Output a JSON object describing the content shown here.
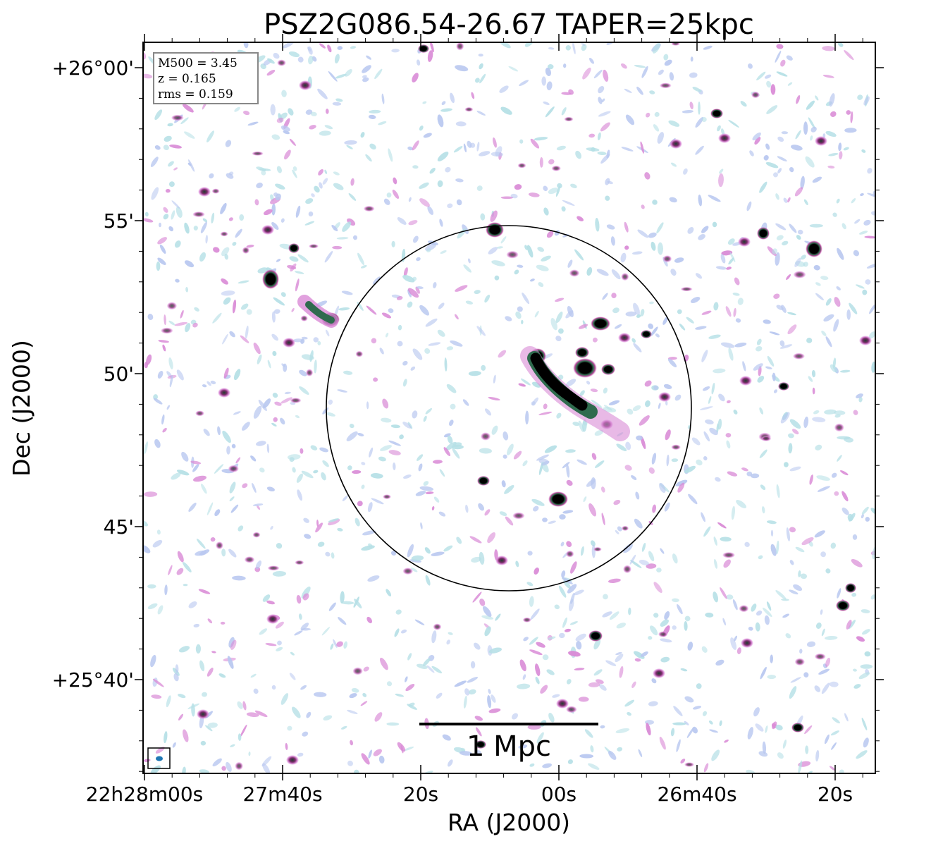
{
  "chart_data": {
    "type": "heatmap",
    "title": "PSZ2G086.54-26.67 TAPER=25kpc",
    "xlabel": "RA (J2000)",
    "ylabel": "Dec (J2000)",
    "x_tick_labels": [
      "22h28m00s",
      "27m40s",
      "20s",
      "00s",
      "26m40s",
      "20s"
    ],
    "y_tick_labels": [
      "+26°00'",
      "55'",
      "50'",
      "45'",
      "+25°40'"
    ],
    "annotations": {
      "mass": "M500 = 3.45",
      "redshift": "z = 0.165",
      "rms": "rms = 0.159"
    },
    "scale_bar_label": "1 Mpc",
    "colors": {
      "noise_light": "#b9c8f0",
      "noise_cyan": "#b6e0e6",
      "emission_pink": "#d98ad6",
      "emission_magenta": "#b84a9a",
      "emission_green": "#2f6b4e",
      "emission_core": "#000000",
      "beam": "#1f77b4"
    },
    "grid": false
  }
}
